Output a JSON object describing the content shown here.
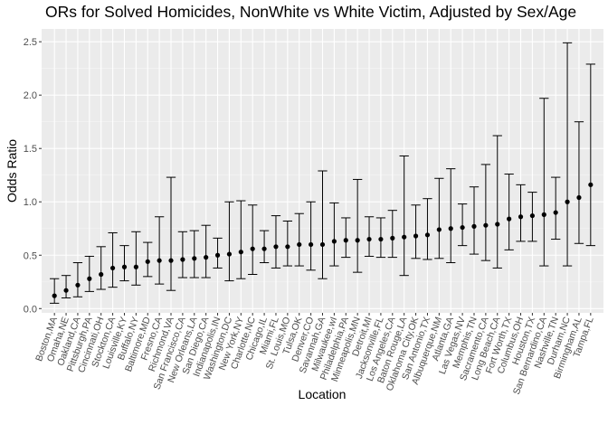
{
  "chart_data": {
    "type": "scatter",
    "subtype": "point-with-errorbars",
    "title": "ORs for Solved Homicides, NonWhite vs White Victim, Adjusted by Sex/Age",
    "xlabel": "Location",
    "ylabel": "Odds Ratio",
    "ylim": [
      -0.04,
      2.62
    ],
    "yticks": [
      0.0,
      0.5,
      1.0,
      1.5,
      2.0,
      2.5
    ],
    "ytick_labels": [
      "0.0",
      "0.5",
      "1.0",
      "1.5",
      "2.0",
      "2.5"
    ],
    "grid": true,
    "legend": "none",
    "colors": {
      "panel": "#ebebeb",
      "grid_major": "#ffffff",
      "grid_minor": "#f5f5f5",
      "points": "#000000",
      "axis_text": "#4d4d4d"
    },
    "categories": [
      "Boston,MA",
      "Omaha,NE",
      "Oakland,CA",
      "Pittsburgh,PA",
      "Cincinnati,OH",
      "Stockton,CA",
      "Louisville,KY",
      "Buffalo,NY",
      "Baltimore,MD",
      "Fresno,CA",
      "Richmond,VA",
      "San Francisco,CA",
      "New Orleans,LA",
      "San Diego,CA",
      "Indianapolis,IN",
      "Washington,DC",
      "New York,NY",
      "Charlotte,NC",
      "Chicago,IL",
      "Miami,FL",
      "St. Louis,MO",
      "Tulsa,OK",
      "Denver,CO",
      "Savannah,GA",
      "Milwaukee,wI",
      "Philadelphia,PA",
      "Minneapolis,MN",
      "Detroit,MI",
      "Jacksonville,FL",
      "Los Angeles,CA",
      "Baton Rouge,LA",
      "Oklahoma City,OK",
      "San Antonio,TX",
      "Albuquerque,NM",
      "Atlanta,GA",
      "Las Vegas,NV",
      "Memphis,TN",
      "Sacramento,CA",
      "Long Beach,CA",
      "Fort Worth,TX",
      "Columbus,OH",
      "Houston,TX",
      "San Bernardino,CA",
      "Nashville,TN",
      "Durham,NC",
      "Birmingham,AL",
      "Tampa,FL"
    ],
    "estimate": [
      0.12,
      0.17,
      0.22,
      0.28,
      0.32,
      0.38,
      0.39,
      0.39,
      0.44,
      0.45,
      0.45,
      0.46,
      0.47,
      0.48,
      0.5,
      0.51,
      0.53,
      0.56,
      0.56,
      0.58,
      0.58,
      0.6,
      0.6,
      0.6,
      0.63,
      0.64,
      0.64,
      0.65,
      0.65,
      0.66,
      0.67,
      0.68,
      0.69,
      0.74,
      0.75,
      0.76,
      0.77,
      0.78,
      0.79,
      0.84,
      0.86,
      0.87,
      0.88,
      0.9,
      1.0,
      1.04,
      1.16
    ],
    "ci_low": [
      0.05,
      0.1,
      0.11,
      0.16,
      0.18,
      0.2,
      0.26,
      0.22,
      0.3,
      0.23,
      0.17,
      0.29,
      0.29,
      0.29,
      0.38,
      0.26,
      0.28,
      0.32,
      0.43,
      0.38,
      0.4,
      0.4,
      0.36,
      0.28,
      0.4,
      0.48,
      0.34,
      0.49,
      0.48,
      0.48,
      0.31,
      0.47,
      0.46,
      0.47,
      0.43,
      0.59,
      0.51,
      0.45,
      0.38,
      0.55,
      0.63,
      0.63,
      0.4,
      0.65,
      0.4,
      0.61,
      0.59
    ],
    "ci_high": [
      0.28,
      0.31,
      0.43,
      0.49,
      0.58,
      0.71,
      0.59,
      0.72,
      0.62,
      0.86,
      1.23,
      0.72,
      0.73,
      0.78,
      0.66,
      1.0,
      1.01,
      0.97,
      0.73,
      0.87,
      0.82,
      0.89,
      1.0,
      1.29,
      0.99,
      0.85,
      1.21,
      0.86,
      0.85,
      0.92,
      1.43,
      0.97,
      1.03,
      1.22,
      1.31,
      0.98,
      1.14,
      1.35,
      1.62,
      1.26,
      1.16,
      1.09,
      1.97,
      1.23,
      2.49,
      1.75,
      2.29
    ]
  }
}
